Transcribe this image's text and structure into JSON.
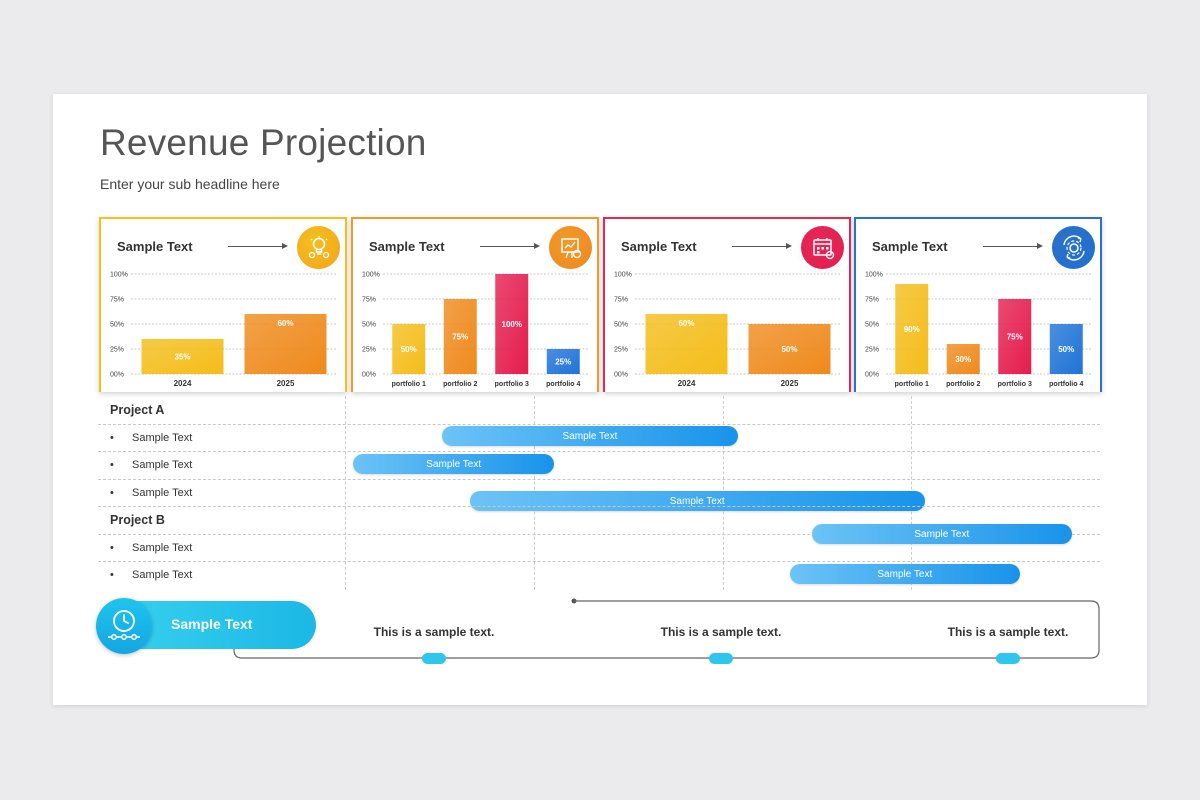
{
  "header": {
    "title": "Revenue Projection",
    "subtitle": "Enter your sub headline here"
  },
  "cards": [
    {
      "title": "Sample Text",
      "accent": "#f4c020",
      "icon": "lightbulb-gear-icon",
      "icon_color": "#f5a21a"
    },
    {
      "title": "Sample Text",
      "accent": "#f19a28",
      "icon": "presentation-board-icon",
      "icon_color": "#ee8620"
    },
    {
      "title": "Sample Text",
      "accent": "#e42857",
      "icon": "calendar-analytics-icon",
      "icon_color": "#e51d4e"
    },
    {
      "title": "Sample Text",
      "accent": "#2a72c9",
      "icon": "gear-cycle-icon",
      "icon_color": "#1f6fd0"
    }
  ],
  "chart_data": [
    {
      "type": "bar",
      "categories": [
        "2024",
        "2025"
      ],
      "values": [
        35,
        60
      ],
      "value_labels": [
        "35%",
        "60%"
      ],
      "colors": [
        "#f4bd1a",
        "#ef8a1c"
      ],
      "yticks": [
        "100%",
        "75%",
        "50%",
        "25%",
        "00%"
      ],
      "ylim": [
        0,
        100
      ]
    },
    {
      "type": "bar",
      "categories": [
        "portfolio 1",
        "portfolio 2",
        "portfolio 3",
        "portfolio 4"
      ],
      "values": [
        50,
        75,
        100,
        25
      ],
      "value_labels": [
        "50%",
        "75%",
        "100%",
        "25%"
      ],
      "colors": [
        "#f4bd1a",
        "#ef8a1c",
        "#e51d4e",
        "#1f73d8"
      ],
      "yticks": [
        "100%",
        "75%",
        "50%",
        "25%",
        "00%"
      ],
      "ylim": [
        0,
        100
      ]
    },
    {
      "type": "bar",
      "categories": [
        "2024",
        "2025"
      ],
      "values": [
        60,
        50
      ],
      "value_labels": [
        "60%",
        "50%"
      ],
      "colors": [
        "#f4bd1a",
        "#ef8a1c"
      ],
      "yticks": [
        "100%",
        "75%",
        "50%",
        "25%",
        "00%"
      ],
      "ylim": [
        0,
        100
      ]
    },
    {
      "type": "bar",
      "categories": [
        "portfolio 1",
        "portfolio 2",
        "portfolio 3",
        "portfolio 4"
      ],
      "values": [
        90,
        30,
        75,
        50
      ],
      "value_labels": [
        "90%",
        "30%",
        "75%",
        "50%"
      ],
      "colors": [
        "#f4bd1a",
        "#ef8a1c",
        "#e51d4e",
        "#1f73d8"
      ],
      "yticks": [
        "100%",
        "75%",
        "50%",
        "25%",
        "00%"
      ],
      "ylim": [
        0,
        100
      ]
    }
  ],
  "gantt": {
    "sections": [
      {
        "name": "Project A",
        "tasks": [
          {
            "label": "Sample Text",
            "bar_label": "Sample Text",
            "start": 0.128,
            "end": 0.521
          },
          {
            "label": "Sample Text",
            "bar_label": "Sample Text",
            "start": 0.011,
            "end": 0.277
          },
          {
            "label": "Sample Text",
            "bar_label": "Sample Text",
            "start": 0.165,
            "end": 0.768
          }
        ]
      },
      {
        "name": "Project B",
        "tasks": [
          {
            "label": "Sample Text",
            "bar_label": "Sample Text",
            "start": 0.618,
            "end": 0.963
          },
          {
            "label": "Sample Text",
            "bar_label": "Sample Text",
            "start": 0.589,
            "end": 0.894
          }
        ]
      }
    ],
    "bullet": "•"
  },
  "timeline": {
    "pill_label": "Sample Text",
    "pill_icon": "clock-timeline-icon",
    "items": [
      "This is a sample text.",
      "This is a sample text.",
      "This is a sample text."
    ]
  }
}
